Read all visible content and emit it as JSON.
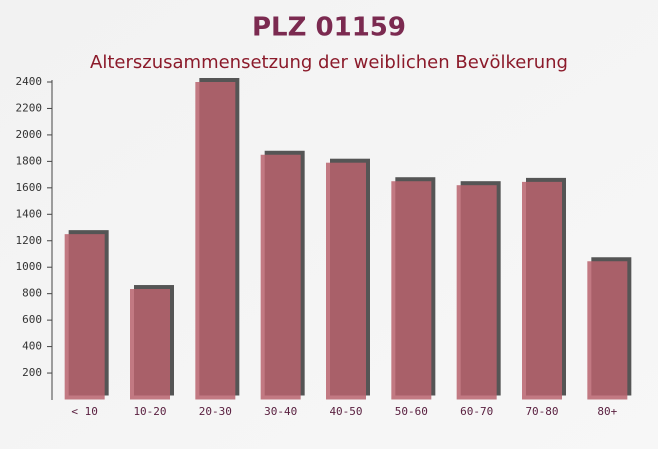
{
  "chart_data": {
    "type": "bar",
    "title": "PLZ 01159",
    "subtitle": "Alterszusammensetzung der weiblichen Bevölkerung",
    "categories": [
      "< 10",
      "10-20",
      "20-30",
      "30-40",
      "40-50",
      "50-60",
      "60-70",
      "70-80",
      "80+"
    ],
    "values": [
      1250,
      835,
      2400,
      1850,
      1790,
      1650,
      1620,
      1645,
      1045
    ],
    "color": "#b8636d",
    "ylim": [
      0,
      2400
    ],
    "yticks": [
      200,
      400,
      600,
      800,
      1000,
      1200,
      1400,
      1600,
      1800,
      2000,
      2200,
      2400
    ]
  }
}
